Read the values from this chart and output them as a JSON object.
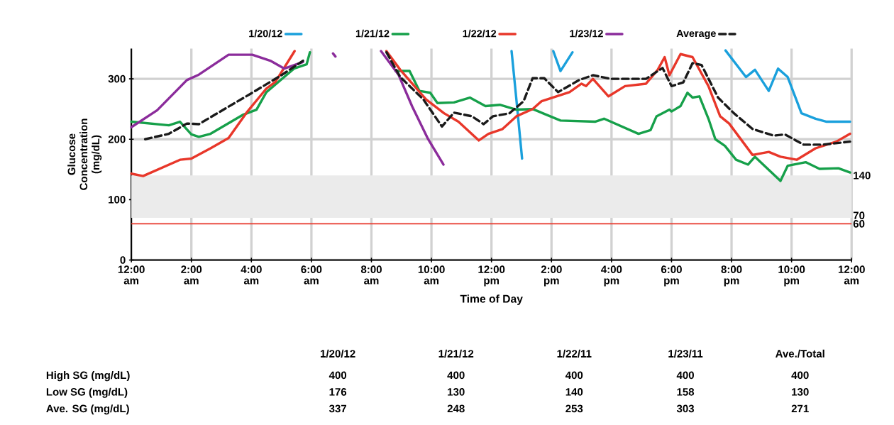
{
  "chart_data": {
    "type": "line",
    "xlabel": "Time of Day",
    "ylabel": "Glucose Concentration (mg/dL)",
    "xlim": [
      0,
      24
    ],
    "ylim": [
      0,
      350
    ],
    "yticks": [
      0,
      100,
      200,
      300
    ],
    "xticks": [
      {
        "value": 0,
        "label": "12:00 am"
      },
      {
        "value": 2,
        "label": "2:00 am"
      },
      {
        "value": 4,
        "label": "4:00 am"
      },
      {
        "value": 6,
        "label": "6:00 am"
      },
      {
        "value": 8,
        "label": "8:00 am"
      },
      {
        "value": 10,
        "label": "10:00 am"
      },
      {
        "value": 12,
        "label": "12:00 pm"
      },
      {
        "value": 14,
        "label": "2:00 pm"
      },
      {
        "value": 16,
        "label": "4:00 pm"
      },
      {
        "value": 18,
        "label": "6:00 pm"
      },
      {
        "value": 20,
        "label": "8:00 pm"
      },
      {
        "value": 22,
        "label": "10:00 pm"
      },
      {
        "value": 24,
        "label": "12:00 am"
      }
    ],
    "y2lim": [
      0,
      350
    ],
    "y2ticks": [
      60,
      70,
      140
    ],
    "grid": true,
    "legend": "top",
    "bands": [
      {
        "axis": "y",
        "from": 70,
        "to": 140,
        "color": "#ebebeb"
      }
    ],
    "ref_lines": [
      {
        "axis": "y",
        "value": 60,
        "color": "#e8372a"
      }
    ],
    "series": [
      {
        "name": "1/20/12",
        "color": "#1aa0dc",
        "x": [
          12.67,
          12.83,
          13.02,
          13.5,
          14.06,
          14.3,
          14.7,
          17,
          19.8,
          20.48,
          20.78,
          21.24,
          21.55,
          21.87,
          22.33,
          22.8,
          23.17,
          23.95
        ],
        "values": [
          346,
          266,
          168,
          null,
          346,
          313,
          344,
          null,
          347,
          303,
          315,
          280,
          317,
          303,
          243,
          234,
          229,
          229
        ]
      },
      {
        "name": "1/21/12",
        "color": "#16a04a",
        "x": [
          0,
          1.25,
          1.62,
          2.0,
          2.25,
          2.64,
          3.7,
          4.17,
          4.5,
          5.42,
          5.84,
          5.95,
          7,
          8.8,
          9.27,
          9.6,
          9.96,
          10.2,
          10.75,
          11.28,
          11.8,
          12.28,
          12.83,
          13.37,
          14.3,
          15.45,
          15.75,
          16.9,
          17.3,
          17.5,
          17.93,
          18.0,
          18.3,
          18.53,
          18.7,
          18.93,
          19.23,
          19.46,
          19.78,
          20.15,
          20.55,
          20.78,
          21.63,
          21.87,
          22.47,
          22.93,
          23.56,
          23.95
        ],
        "values": [
          229,
          223,
          229,
          208,
          204,
          209,
          240,
          249,
          278,
          317,
          324,
          344,
          null,
          313,
          313,
          280,
          277,
          260,
          261,
          269,
          255,
          257,
          249,
          250,
          231,
          229,
          234,
          209,
          215,
          238,
          249,
          246,
          255,
          277,
          269,
          271,
          234,
          200,
          189,
          166,
          158,
          171,
          131,
          156,
          162,
          151,
          152,
          145
        ]
      },
      {
        "name": "1/22/12",
        "color": "#e8372a",
        "x": [
          0,
          0.39,
          1.62,
          2.0,
          2.64,
          3.24,
          3.87,
          4.5,
          4.8,
          5.44,
          7,
          8.5,
          8.96,
          9.82,
          10.42,
          10.9,
          11.58,
          11.9,
          12.37,
          12.83,
          13.37,
          13.67,
          14.6,
          15.0,
          15.15,
          15.38,
          15.9,
          16.45,
          17.15,
          17.54,
          17.77,
          17.93,
          18.3,
          18.7,
          19.23,
          19.62,
          19.92,
          20.7,
          21.24,
          21.63,
          22.17,
          22.8,
          23.49,
          23.95
        ],
        "values": [
          143,
          139,
          166,
          168,
          185,
          202,
          246,
          284,
          295,
          346,
          null,
          346,
          315,
          266,
          243,
          229,
          198,
          209,
          217,
          238,
          250,
          263,
          278,
          292,
          288,
          300,
          271,
          288,
          292,
          315,
          336,
          306,
          341,
          336,
          288,
          238,
          226,
          174,
          179,
          171,
          166,
          185,
          196,
          209
        ]
      },
      {
        "name": "1/23/12",
        "color": "#8b2c9b",
        "x": [
          0,
          0.86,
          1.85,
          2.25,
          3.24,
          4.03,
          4.63,
          5.1,
          5.72,
          6.2,
          6.72,
          6.8,
          7.5,
          8.32,
          8.9,
          9.36,
          9.89,
          10.4
        ],
        "values": [
          220,
          248,
          298,
          307,
          340,
          340,
          330,
          317,
          328,
          null,
          342,
          337,
          null,
          346,
          307,
          254,
          200,
          158
        ]
      },
      {
        "name": "Average",
        "color": "#1a1a1a",
        "line_style": "dashed",
        "x": [
          0.46,
          1.25,
          1.85,
          2.25,
          3.24,
          4.03,
          5.03,
          5.72,
          7,
          8.5,
          8.96,
          9.73,
          10.35,
          10.75,
          11.35,
          11.74,
          12.05,
          12.6,
          13.07,
          13.37,
          13.76,
          14.22,
          14.92,
          15.38,
          15.98,
          17.15,
          17.7,
          18.0,
          18.39,
          18.7,
          19.0,
          19.55,
          20.08,
          20.7,
          21.4,
          21.78,
          22.4,
          23.03,
          23.95
        ],
        "values": [
          200,
          209,
          226,
          225,
          254,
          277,
          307,
          330,
          null,
          344,
          303,
          266,
          221,
          244,
          238,
          225,
          238,
          243,
          263,
          301,
          301,
          278,
          298,
          306,
          300,
          300,
          318,
          288,
          294,
          326,
          323,
          269,
          243,
          217,
          206,
          208,
          191,
          191,
          196
        ]
      }
    ],
    "annotations": [
      "1/20/12",
      "1/21/12",
      "1/22/11",
      "1/23/11",
      "Ave./Total",
      "High SG (mg/dL)",
      "400",
      "400",
      "400",
      "400",
      "400",
      "Low SG (mg/dL)",
      "176",
      "130",
      "140",
      "158",
      "130",
      "Ave. SG (mg/dL)",
      "337",
      "248",
      "253",
      "303",
      "271"
    ]
  }
}
